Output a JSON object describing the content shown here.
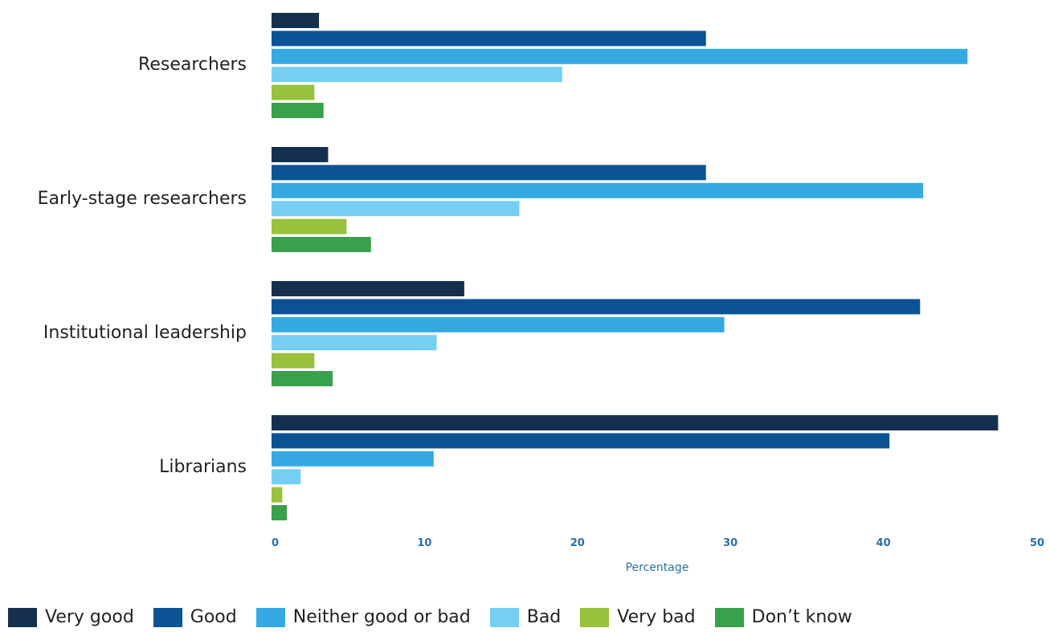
{
  "chart_data": {
    "type": "bar",
    "orientation": "horizontal",
    "categories": [
      "Researchers",
      "Early-stage researchers",
      "Institutional leadership",
      "Librarians"
    ],
    "series": [
      {
        "name": "Very good",
        "color": "#15304f",
        "values": [
          3.1,
          3.7,
          12.6,
          47.5
        ]
      },
      {
        "name": "Good",
        "color": "#0b5394",
        "values": [
          28.4,
          28.4,
          42.4,
          40.4
        ]
      },
      {
        "name": "Neither good or bad",
        "color": "#35a9e1",
        "values": [
          45.5,
          42.6,
          29.6,
          10.6
        ]
      },
      {
        "name": "Bad",
        "color": "#74cff2",
        "values": [
          19.0,
          16.2,
          10.8,
          1.9
        ]
      },
      {
        "name": "Very bad",
        "color": "#98c13d",
        "values": [
          2.8,
          4.9,
          2.8,
          0.7
        ]
      },
      {
        "name": "Don’t know",
        "color": "#39a14b",
        "values": [
          3.4,
          6.5,
          4.0,
          1.0
        ]
      }
    ],
    "xlabel": "Percentage",
    "ylabel": "",
    "xlim": [
      0,
      50
    ],
    "xticks": [
      "0",
      "10",
      "20",
      "30",
      "40",
      "50"
    ],
    "grid": false,
    "legend_position": "bottom"
  }
}
